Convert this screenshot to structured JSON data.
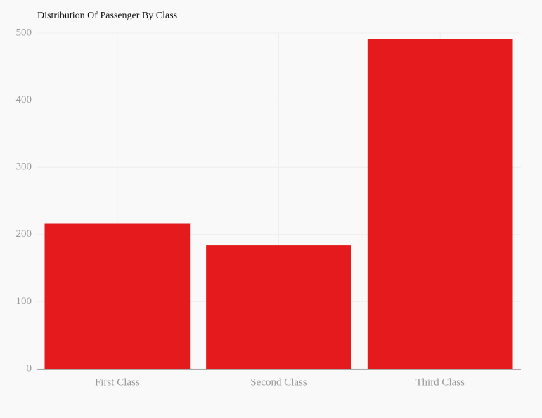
{
  "chart_data": {
    "type": "bar",
    "title": "Distribution Of Passenger By Class",
    "categories": [
      "First Class",
      "Second Class",
      "Third Class"
    ],
    "values": [
      216,
      184,
      491
    ],
    "color": "#e41a1c",
    "ylim": [
      0,
      500
    ],
    "yticks": [
      0,
      100,
      200,
      300,
      400,
      500
    ],
    "grid": true
  }
}
